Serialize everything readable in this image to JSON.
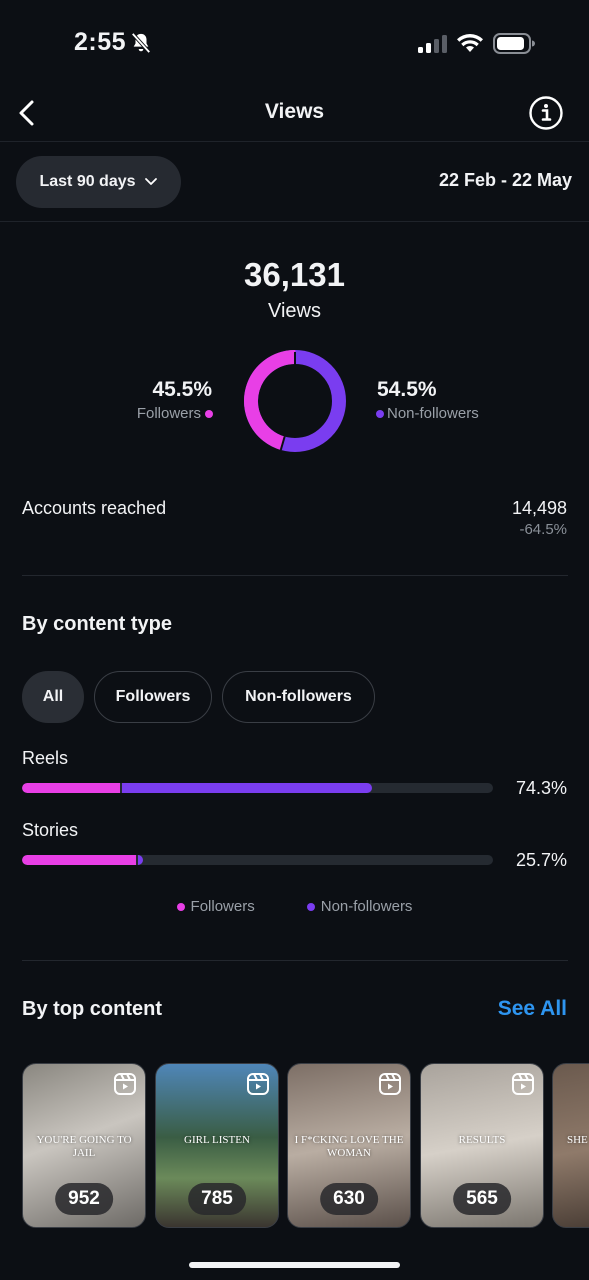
{
  "status_bar": {
    "time": "2:55"
  },
  "nav": {
    "title": "Views"
  },
  "filter": {
    "period_label": "Last 90 days",
    "date_range": "22 Feb - 22 May"
  },
  "summary": {
    "total": "36,131",
    "total_label": "Views",
    "followers_pct": "45.5%",
    "followers_label": "Followers",
    "non_followers_pct": "54.5%",
    "non_followers_label": "Non-followers",
    "followers_fraction": 0.455
  },
  "accounts": {
    "label": "Accounts reached",
    "value": "14,498",
    "delta": "-64.5%"
  },
  "content_type": {
    "title": "By content type",
    "tabs": [
      {
        "label": "All",
        "active": true
      },
      {
        "label": "Followers",
        "active": false
      },
      {
        "label": "Non-followers",
        "active": false
      }
    ],
    "rows": [
      {
        "label": "Reels",
        "pct": "74.3%",
        "total": 74.3,
        "followers": 21.0
      },
      {
        "label": "Stories",
        "pct": "25.7%",
        "total": 25.7,
        "followers": 24.5
      }
    ],
    "legend": {
      "followers": "Followers",
      "non_followers": "Non-followers"
    }
  },
  "top_content": {
    "title": "By top content",
    "see_all": "See All",
    "items": [
      {
        "caption": "YOU'RE GOING TO JAIL",
        "count": "952",
        "bg": "linear-gradient(160deg,#8a8780 0%,#c9c5bf 45%,#6d6a66 100%)"
      },
      {
        "caption": "GIRL LISTEN",
        "count": "785",
        "bg": "linear-gradient(180deg,#4f86b8 0%,#3a5d44 45%,#6b8a5a 70%,#3b3530 100%)"
      },
      {
        "caption": "I F*CKING LOVE THE WOMAN",
        "count": "630",
        "bg": "linear-gradient(170deg,#7d6f66 0%,#b9ada2 50%,#5b504a 100%)"
      },
      {
        "caption": "RESULTS",
        "count": "565",
        "bg": "linear-gradient(170deg,#a9a39c 0%,#d6d0c8 50%,#7b766f 100%)"
      },
      {
        "caption": "SHE",
        "count": "",
        "bg": "linear-gradient(170deg,#6b5a4e 0%,#8f7a6a 50%,#3f342d 100%)"
      }
    ]
  },
  "colors": {
    "followers": "#e83fe6",
    "non_followers": "#7a3df0",
    "link": "#2e95f0"
  },
  "icons": [
    "bell-slash-icon",
    "signal-icon",
    "wifi-icon",
    "battery-icon",
    "back-chevron-icon",
    "info-icon",
    "chevron-down-icon",
    "reel-icon"
  ]
}
